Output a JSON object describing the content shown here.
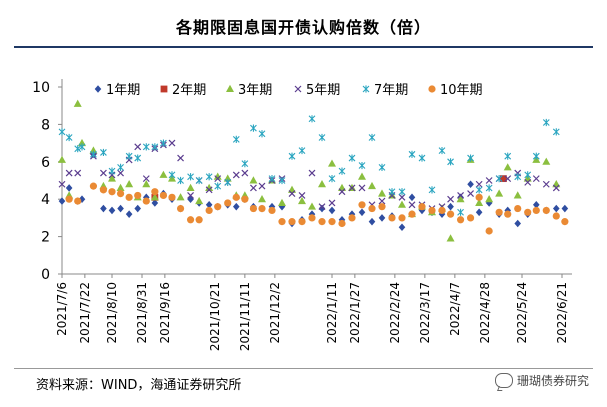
{
  "header": {
    "title": "各期限固息国开债认购倍数（倍）"
  },
  "footer": {
    "source": "资料来源：WIND，海通证券研究所",
    "watermark": "珊瑚债券研究"
  },
  "colors": {
    "title_rule": "#1f3864",
    "1y": "#2f4ea1",
    "2y": "#c0392b",
    "3y": "#8bbf3f",
    "5y": "#5b3d8f",
    "7y": "#2aa5c0",
    "10y": "#ea8a34"
  },
  "chart_data": {
    "type": "scatter",
    "title": "各期限固息国开债认购倍数（倍）",
    "xlabel": "",
    "ylabel": "",
    "ylim": [
      0,
      10
    ],
    "yticks": [
      0,
      2,
      4,
      6,
      8,
      10
    ],
    "x_range_days": [
      0,
      357
    ],
    "x_ticks": [
      {
        "label": "2021/7/6",
        "day": 0
      },
      {
        "label": "2021/7/22",
        "day": 16
      },
      {
        "label": "2021/8/10",
        "day": 35
      },
      {
        "label": "2021/8/31",
        "day": 56
      },
      {
        "label": "2021/9/16",
        "day": 72
      },
      {
        "label": "2021/10/21",
        "day": 107
      },
      {
        "label": "2021/11/11",
        "day": 128
      },
      {
        "label": "2021/12/2",
        "day": 149
      },
      {
        "label": "2022/1/11",
        "day": 189
      },
      {
        "label": "2022/1/27",
        "day": 205
      },
      {
        "label": "2022/2/24",
        "day": 233
      },
      {
        "label": "2022/3/17",
        "day": 254
      },
      {
        "label": "2022/4/7",
        "day": 275
      },
      {
        "label": "2022/4/28",
        "day": 296
      },
      {
        "label": "2022/5/24",
        "day": 322
      },
      {
        "label": "2022/6/21",
        "day": 350
      }
    ],
    "legend": {
      "position": "top",
      "entries": [
        "1年期",
        "2年期",
        "3年期",
        "5年期",
        "7年期",
        "10年期"
      ]
    },
    "series": [
      {
        "name": "1年期",
        "marker": "diamond",
        "color": "#2f4ea1",
        "points": [
          [
            0,
            3.9
          ],
          [
            5,
            4.6
          ],
          [
            11,
            3.9
          ],
          [
            14,
            4.0
          ],
          [
            22,
            6.4
          ],
          [
            29,
            3.5
          ],
          [
            35,
            3.4
          ],
          [
            41,
            3.5
          ],
          [
            47,
            3.2
          ],
          [
            53,
            3.5
          ],
          [
            59,
            4.1
          ],
          [
            65,
            3.8
          ],
          [
            71,
            4.3
          ],
          [
            77,
            4.0
          ],
          [
            83,
            3.5
          ],
          [
            90,
            4.0
          ],
          [
            96,
            3.8
          ],
          [
            103,
            3.7
          ],
          [
            109,
            3.6
          ],
          [
            116,
            3.7
          ],
          [
            122,
            3.6
          ],
          [
            128,
            4.0
          ],
          [
            134,
            3.6
          ],
          [
            140,
            3.5
          ],
          [
            147,
            3.6
          ],
          [
            154,
            3.6
          ],
          [
            161,
            2.7
          ],
          [
            168,
            2.9
          ],
          [
            175,
            3.2
          ],
          [
            182,
            3.5
          ],
          [
            189,
            3.4
          ],
          [
            196,
            2.9
          ],
          [
            203,
            3.2
          ],
          [
            210,
            3.3
          ],
          [
            217,
            2.8
          ],
          [
            224,
            3.0
          ],
          [
            231,
            3.1
          ],
          [
            238,
            2.5
          ],
          [
            245,
            4.1
          ],
          [
            252,
            3.4
          ],
          [
            259,
            3.3
          ],
          [
            266,
            3.2
          ],
          [
            272,
            3.6
          ],
          [
            279,
            4.1
          ],
          [
            286,
            4.8
          ],
          [
            292,
            3.3
          ],
          [
            299,
            3.8
          ],
          [
            306,
            3.2
          ],
          [
            312,
            3.4
          ],
          [
            319,
            2.7
          ],
          [
            326,
            3.2
          ],
          [
            332,
            3.7
          ],
          [
            339,
            3.4
          ],
          [
            346,
            3.5
          ],
          [
            352,
            3.5
          ]
        ]
      },
      {
        "name": "2年期",
        "marker": "square",
        "color": "#c0392b",
        "points": [
          [
            65,
            4.1
          ],
          [
            309,
            5.1
          ]
        ]
      },
      {
        "name": "3年期",
        "marker": "triangle",
        "color": "#8bbf3f",
        "points": [
          [
            0,
            6.1
          ],
          [
            5,
            4.2
          ],
          [
            11,
            9.1
          ],
          [
            14,
            7.0
          ],
          [
            22,
            6.6
          ],
          [
            29,
            4.7
          ],
          [
            35,
            5.1
          ],
          [
            41,
            4.6
          ],
          [
            47,
            4.8
          ],
          [
            53,
            4.1
          ],
          [
            59,
            4.8
          ],
          [
            65,
            4.1
          ],
          [
            71,
            5.3
          ],
          [
            77,
            5.1
          ],
          [
            83,
            4.1
          ],
          [
            90,
            4.6
          ],
          [
            96,
            3.9
          ],
          [
            103,
            4.6
          ],
          [
            109,
            5.2
          ],
          [
            116,
            5.1
          ],
          [
            122,
            4.2
          ],
          [
            128,
            4.2
          ],
          [
            134,
            5.0
          ],
          [
            140,
            4.0
          ],
          [
            147,
            5.0
          ],
          [
            154,
            3.8
          ],
          [
            161,
            4.5
          ],
          [
            168,
            3.9
          ],
          [
            175,
            3.6
          ],
          [
            182,
            4.8
          ],
          [
            189,
            5.9
          ],
          [
            196,
            4.6
          ],
          [
            203,
            4.6
          ],
          [
            210,
            5.2
          ],
          [
            217,
            4.7
          ],
          [
            224,
            4.3
          ],
          [
            231,
            4.2
          ],
          [
            238,
            3.7
          ],
          [
            245,
            3.2
          ],
          [
            252,
            3.6
          ],
          [
            259,
            3.3
          ],
          [
            266,
            3.5
          ],
          [
            272,
            1.9
          ],
          [
            279,
            4.0
          ],
          [
            286,
            6.1
          ],
          [
            292,
            3.8
          ],
          [
            299,
            4.0
          ],
          [
            306,
            4.3
          ],
          [
            312,
            5.7
          ],
          [
            319,
            4.2
          ],
          [
            326,
            5.1
          ],
          [
            332,
            6.1
          ],
          [
            339,
            6.0
          ],
          [
            346,
            4.8
          ]
        ]
      },
      {
        "name": "5年期",
        "marker": "x",
        "color": "#5b3d8f",
        "points": [
          [
            0,
            4.8
          ],
          [
            5,
            5.4
          ],
          [
            11,
            5.4
          ],
          [
            22,
            6.3
          ],
          [
            29,
            5.4
          ],
          [
            35,
            5.3
          ],
          [
            41,
            5.4
          ],
          [
            47,
            6.1
          ],
          [
            53,
            6.8
          ],
          [
            59,
            5.1
          ],
          [
            65,
            6.7
          ],
          [
            71,
            6.9
          ],
          [
            77,
            7.0
          ],
          [
            83,
            6.2
          ],
          [
            90,
            4.2
          ],
          [
            96,
            5.0
          ],
          [
            103,
            4.5
          ],
          [
            109,
            5.1
          ],
          [
            116,
            4.9
          ],
          [
            122,
            5.3
          ],
          [
            128,
            5.4
          ],
          [
            134,
            4.6
          ],
          [
            140,
            4.7
          ],
          [
            147,
            5.0
          ],
          [
            154,
            5.1
          ],
          [
            161,
            4.3
          ],
          [
            168,
            4.2
          ],
          [
            175,
            5.4
          ],
          [
            182,
            3.6
          ],
          [
            189,
            3.8
          ],
          [
            196,
            4.4
          ],
          [
            203,
            4.6
          ],
          [
            210,
            4.6
          ],
          [
            217,
            3.7
          ],
          [
            224,
            3.9
          ],
          [
            231,
            4.2
          ],
          [
            238,
            4.1
          ],
          [
            245,
            3.7
          ],
          [
            252,
            3.7
          ],
          [
            259,
            3.5
          ],
          [
            266,
            3.6
          ],
          [
            272,
            4.0
          ],
          [
            279,
            4.2
          ],
          [
            286,
            4.3
          ],
          [
            292,
            4.8
          ],
          [
            299,
            5.0
          ],
          [
            306,
            5.1
          ],
          [
            312,
            5.1
          ],
          [
            319,
            5.4
          ],
          [
            326,
            4.9
          ],
          [
            332,
            5.1
          ],
          [
            339,
            4.8
          ],
          [
            346,
            4.6
          ]
        ]
      },
      {
        "name": "7年期",
        "marker": "asterisk",
        "color": "#2aa5c0",
        "points": [
          [
            0,
            7.6
          ],
          [
            5,
            7.3
          ],
          [
            11,
            6.7
          ],
          [
            14,
            6.8
          ],
          [
            22,
            6.4
          ],
          [
            29,
            6.5
          ],
          [
            35,
            5.5
          ],
          [
            41,
            5.7
          ],
          [
            47,
            6.3
          ],
          [
            53,
            6.2
          ],
          [
            59,
            6.8
          ],
          [
            65,
            6.8
          ],
          [
            71,
            7.0
          ],
          [
            77,
            5.3
          ],
          [
            83,
            5.0
          ],
          [
            90,
            5.2
          ],
          [
            96,
            5.0
          ],
          [
            103,
            5.2
          ],
          [
            109,
            4.7
          ],
          [
            116,
            4.9
          ],
          [
            122,
            7.2
          ],
          [
            128,
            5.9
          ],
          [
            134,
            7.8
          ],
          [
            140,
            7.5
          ],
          [
            147,
            5.1
          ],
          [
            154,
            5.0
          ],
          [
            161,
            6.3
          ],
          [
            168,
            6.6
          ],
          [
            175,
            8.3
          ],
          [
            182,
            7.3
          ],
          [
            189,
            5.1
          ],
          [
            196,
            5.5
          ],
          [
            203,
            6.2
          ],
          [
            210,
            5.8
          ],
          [
            217,
            7.3
          ],
          [
            224,
            5.7
          ],
          [
            231,
            4.4
          ],
          [
            238,
            4.4
          ],
          [
            245,
            6.4
          ],
          [
            252,
            6.2
          ],
          [
            259,
            4.5
          ],
          [
            266,
            6.6
          ],
          [
            272,
            6.0
          ],
          [
            279,
            3.3
          ],
          [
            286,
            6.2
          ],
          [
            292,
            4.5
          ],
          [
            299,
            4.6
          ],
          [
            306,
            5.1
          ],
          [
            312,
            6.3
          ],
          [
            319,
            5.2
          ],
          [
            326,
            5.3
          ],
          [
            332,
            6.3
          ],
          [
            339,
            8.1
          ],
          [
            346,
            7.6
          ]
        ]
      },
      {
        "name": "10年期",
        "marker": "circle",
        "color": "#ea8a34",
        "points": [
          [
            5,
            4.0
          ],
          [
            11,
            3.9
          ],
          [
            22,
            4.7
          ],
          [
            29,
            4.5
          ],
          [
            35,
            4.4
          ],
          [
            41,
            4.3
          ],
          [
            47,
            4.1
          ],
          [
            53,
            4.2
          ],
          [
            59,
            3.9
          ],
          [
            65,
            4.4
          ],
          [
            71,
            4.2
          ],
          [
            77,
            4.1
          ],
          [
            83,
            3.5
          ],
          [
            90,
            2.9
          ],
          [
            96,
            2.9
          ],
          [
            103,
            3.4
          ],
          [
            109,
            3.6
          ],
          [
            116,
            3.8
          ],
          [
            122,
            4.1
          ],
          [
            128,
            4.0
          ],
          [
            134,
            3.5
          ],
          [
            140,
            3.5
          ],
          [
            147,
            3.4
          ],
          [
            154,
            2.8
          ],
          [
            161,
            2.8
          ],
          [
            168,
            2.8
          ],
          [
            175,
            3.0
          ],
          [
            182,
            2.8
          ],
          [
            189,
            2.8
          ],
          [
            196,
            2.7
          ],
          [
            203,
            3.0
          ],
          [
            210,
            3.7
          ],
          [
            217,
            3.5
          ],
          [
            224,
            3.6
          ],
          [
            231,
            3.0
          ],
          [
            238,
            3.0
          ],
          [
            245,
            3.2
          ],
          [
            252,
            3.6
          ],
          [
            259,
            3.4
          ],
          [
            266,
            3.4
          ],
          [
            272,
            3.2
          ],
          [
            279,
            2.9
          ],
          [
            286,
            3.0
          ],
          [
            292,
            4.1
          ],
          [
            299,
            2.3
          ],
          [
            306,
            3.3
          ],
          [
            312,
            3.2
          ],
          [
            319,
            3.5
          ],
          [
            326,
            3.3
          ],
          [
            332,
            3.4
          ],
          [
            339,
            3.4
          ],
          [
            346,
            3.1
          ],
          [
            352,
            2.8
          ]
        ]
      }
    ]
  }
}
